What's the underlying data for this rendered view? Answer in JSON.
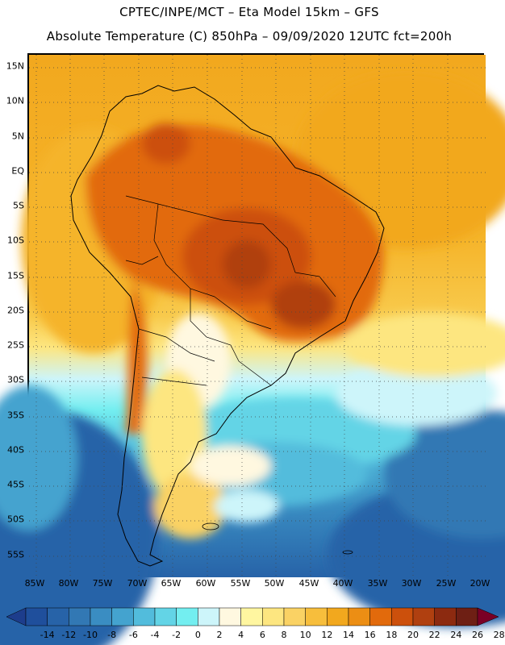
{
  "header": {
    "line1": "CPTEC/INPE/MCT –  Eta Model 15km – GFS",
    "line2": "Absolute Temperature (C) 850hPa – 09/09/2020 12UTC fct=200h"
  },
  "map": {
    "region": "South America",
    "lat_labels": [
      "15N",
      "10N",
      "5N",
      "EQ",
      "5S",
      "10S",
      "15S",
      "20S",
      "25S",
      "30S",
      "35S",
      "40S",
      "45S",
      "50S",
      "55S"
    ],
    "lon_labels": [
      "85W",
      "80W",
      "75W",
      "70W",
      "65W",
      "60W",
      "55W",
      "50W",
      "45W",
      "40W",
      "35W",
      "30W",
      "25W",
      "20W"
    ],
    "gridlines": "dotted"
  },
  "colorbar": {
    "unit": "C",
    "labels": [
      "-14",
      "-12",
      "-10",
      "-8",
      "-6",
      "-4",
      "-2",
      "0",
      "2",
      "4",
      "6",
      "8",
      "10",
      "12",
      "14",
      "16",
      "18",
      "20",
      "22",
      "24",
      "26",
      "28"
    ],
    "colors": [
      "#1d3d8c",
      "#1f4f9c",
      "#2763a8",
      "#3278b4",
      "#3a8dc2",
      "#44a3cf",
      "#52bcdc",
      "#63d4e6",
      "#73eef0",
      "#cdf5fa",
      "#fff8e0",
      "#fff6a0",
      "#fde680",
      "#fad264",
      "#f7be3c",
      "#f2a81e",
      "#ec8e14",
      "#e26a0c",
      "#cc500c",
      "#b04010",
      "#8c2a10",
      "#6e1f14",
      "#7a0026"
    ]
  }
}
